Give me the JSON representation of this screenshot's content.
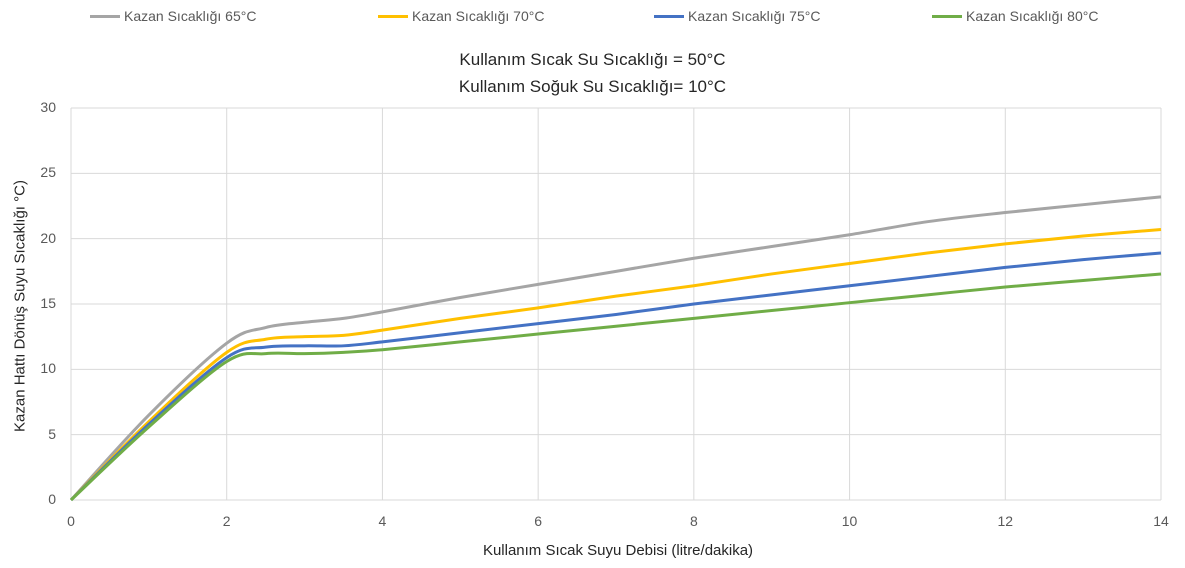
{
  "chart_data": {
    "type": "line",
    "title": "Kullanım Sıcak Su Sıcaklığı = 50°C",
    "subtitle": "Kullanım Soğuk Su Sıcaklığı= 10°C",
    "xlabel": "Kullanım Sıcak Suyu Debisi (litre/dakika)",
    "ylabel": "Kazan Hattı Dönüş Suyu Sıcaklığı °C)",
    "xlim": [
      0,
      14
    ],
    "ylim": [
      0,
      30
    ],
    "xticks": [
      0,
      2,
      4,
      6,
      8,
      10,
      12,
      14
    ],
    "yticks": [
      0,
      5,
      10,
      15,
      20,
      25,
      30
    ],
    "grid": true,
    "legend_position": "top",
    "x": [
      0,
      1,
      2,
      2.5,
      3,
      3.5,
      4,
      5,
      6,
      7,
      8,
      9,
      10,
      11,
      12,
      13,
      14
    ],
    "series": [
      {
        "name": "Kazan Sıcaklığı 65°C",
        "color": "#a5a5a5",
        "values": [
          0,
          6.5,
          12.0,
          13.2,
          13.6,
          13.9,
          14.4,
          15.5,
          16.5,
          17.5,
          18.5,
          19.4,
          20.3,
          21.3,
          22.0,
          22.6,
          23.2
        ]
      },
      {
        "name": "Kazan Sıcaklığı 70°C",
        "color": "#ffc000",
        "values": [
          0,
          6.0,
          11.3,
          12.3,
          12.5,
          12.6,
          13.0,
          13.9,
          14.7,
          15.6,
          16.4,
          17.3,
          18.1,
          18.9,
          19.6,
          20.2,
          20.7
        ]
      },
      {
        "name": "Kazan Sıcaklığı 75°C",
        "color": "#4472c4",
        "values": [
          0,
          5.8,
          10.9,
          11.7,
          11.8,
          11.8,
          12.1,
          12.8,
          13.5,
          14.2,
          15.0,
          15.7,
          16.4,
          17.1,
          17.8,
          18.4,
          18.9
        ]
      },
      {
        "name": "Kazan Sıcaklığı 80°C",
        "color": "#70ad47",
        "values": [
          0,
          5.6,
          10.6,
          11.2,
          11.2,
          11.3,
          11.5,
          12.1,
          12.7,
          13.3,
          13.9,
          14.5,
          15.1,
          15.7,
          16.3,
          16.8,
          17.3
        ]
      }
    ]
  }
}
